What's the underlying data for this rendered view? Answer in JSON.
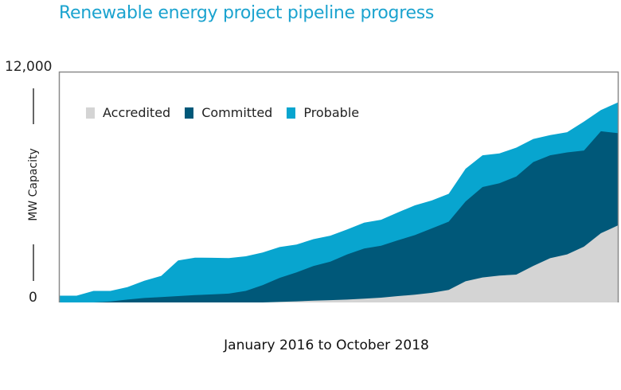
{
  "title": "Renewable energy project pipeline progress",
  "chart_data": {
    "type": "area",
    "stacked": true,
    "title": "Renewable energy project pipeline progress",
    "xlabel": "January 2016 to October 2018",
    "ylabel": "MW Capacity",
    "ylim": [
      0,
      12000
    ],
    "yticks": [
      "0",
      "12,000"
    ],
    "x_range": [
      "January 2016",
      "October 2018"
    ],
    "x": [
      0,
      1,
      2,
      3,
      4,
      5,
      6,
      7,
      8,
      9,
      10,
      11,
      12,
      13,
      14,
      15,
      16,
      17,
      18,
      19,
      20,
      21,
      22,
      23,
      24,
      25,
      26,
      27,
      28,
      29,
      30,
      31,
      32,
      33
    ],
    "x_unit": "months since January 2016",
    "grid": false,
    "legend_position": "top-left",
    "series": [
      {
        "name": "Accredited",
        "color": "#d4d4d4",
        "values": [
          0,
          0,
          0,
          0,
          0,
          0,
          0,
          0,
          0,
          0,
          0,
          0,
          0,
          30,
          60,
          90,
          120,
          150,
          200,
          250,
          330,
          400,
          500,
          650,
          1100,
          1300,
          1400,
          1450,
          1900,
          2300,
          2500,
          2900,
          3600,
          4000
        ]
      },
      {
        "name": "Committed",
        "color": "#005879",
        "values": [
          0,
          0,
          0,
          50,
          150,
          230,
          280,
          330,
          380,
          420,
          460,
          600,
          900,
          1250,
          1500,
          1800,
          2000,
          2350,
          2600,
          2700,
          2900,
          3100,
          3350,
          3550,
          4150,
          4700,
          4800,
          5100,
          5400,
          5350,
          5300,
          5000,
          5300,
          4800
        ]
      },
      {
        "name": "Probable",
        "color": "#08a5cf",
        "values": [
          350,
          350,
          600,
          550,
          650,
          900,
          1100,
          1850,
          1950,
          1900,
          1850,
          1800,
          1700,
          1600,
          1450,
          1400,
          1350,
          1300,
          1350,
          1350,
          1450,
          1550,
          1450,
          1450,
          1700,
          1650,
          1550,
          1500,
          1200,
          1050,
          1050,
          1500,
          1100,
          1600
        ]
      }
    ]
  }
}
